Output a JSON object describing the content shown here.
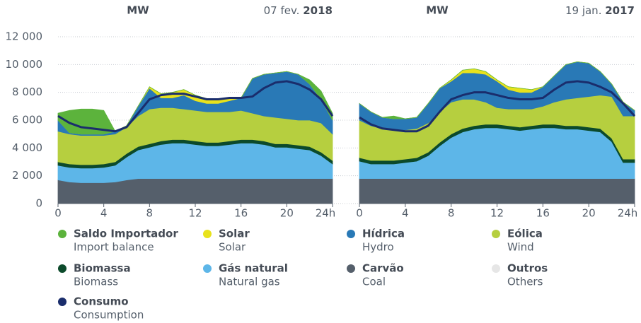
{
  "chart_data": [
    {
      "type": "stacked_area",
      "unit": "MW",
      "date": "07 fev.",
      "year": "2018",
      "x": [
        0,
        1,
        2,
        3,
        4,
        5,
        6,
        7,
        8,
        9,
        10,
        11,
        12,
        13,
        14,
        15,
        16,
        17,
        18,
        19,
        20,
        21,
        22,
        23,
        24
      ],
      "xlim": [
        0,
        24
      ],
      "xticks": [
        0,
        4,
        8,
        12,
        16,
        20,
        {
          "value": 24,
          "label": "24h"
        }
      ],
      "ylim": [
        0,
        12000
      ],
      "yticks": [
        0,
        {
          "value": 2000,
          "label": "2 000"
        },
        {
          "value": 4000,
          "label": "4 000"
        },
        {
          "value": 6000,
          "label": "6 000"
        },
        {
          "value": 8000,
          "label": "8 000"
        },
        {
          "value": 10000,
          "label": "10 000"
        },
        {
          "value": 12000,
          "label": "12 000"
        }
      ],
      "grid": true,
      "series": [
        {
          "name": "Saldo Importador",
          "name_en": "Import balance",
          "color": "#5cb33c",
          "values": [
            500,
            1600,
            1800,
            1800,
            1700,
            0,
            0,
            0,
            0,
            0,
            0,
            0,
            0,
            0,
            0,
            0,
            0,
            0,
            0,
            0,
            0,
            0,
            300,
            600,
            500
          ]
        },
        {
          "name": "Solar",
          "name_en": "Solar",
          "color": "#e8e21c",
          "values": [
            0,
            0,
            0,
            0,
            0,
            0,
            0,
            0,
            100,
            300,
            400,
            400,
            400,
            350,
            300,
            200,
            0,
            0,
            0,
            0,
            0,
            0,
            0,
            0,
            0
          ]
        },
        {
          "name": "Hídrica",
          "name_en": "Hydro",
          "color": "#2979b6",
          "values": [
            800,
            100,
            100,
            100,
            100,
            200,
            100,
            700,
            1500,
            700,
            700,
            1000,
            700,
            600,
            600,
            800,
            900,
            2500,
            3000,
            3200,
            3400,
            3300,
            2600,
            1700,
            1000
          ]
        },
        {
          "name": "Eólica",
          "name_en": "Wind",
          "color": "#b6cf3f",
          "values": [
            2200,
            2150,
            2100,
            2100,
            2050,
            2000,
            1900,
            2200,
            2500,
            2400,
            2300,
            2200,
            2200,
            2200,
            2200,
            2100,
            2100,
            1900,
            1800,
            1900,
            1800,
            1800,
            1900,
            2100,
            1900
          ]
        },
        {
          "name": "Biomassa",
          "name_en": "Biomass",
          "color": "#0c4a2b",
          "values": [
            250,
            250,
            250,
            250,
            250,
            250,
            250,
            250,
            250,
            250,
            250,
            250,
            250,
            250,
            250,
            250,
            250,
            250,
            250,
            250,
            250,
            250,
            250,
            250,
            250
          ]
        },
        {
          "name": "Gás natural",
          "name_en": "Natural gas",
          "color": "#5db6e8",
          "values": [
            1050,
            1050,
            1050,
            1050,
            1100,
            1200,
            1650,
            2050,
            2250,
            2450,
            2550,
            2550,
            2450,
            2350,
            2350,
            2450,
            2550,
            2550,
            2450,
            2250,
            2250,
            2150,
            2050,
            1650,
            1050
          ]
        },
        {
          "name": "Carvão",
          "name_en": "Coal",
          "color": "#555f6b",
          "values": [
            1700,
            1550,
            1500,
            1500,
            1500,
            1550,
            1700,
            1800,
            1800,
            1800,
            1800,
            1800,
            1800,
            1800,
            1800,
            1800,
            1800,
            1800,
            1800,
            1800,
            1800,
            1800,
            1800,
            1800,
            1800
          ]
        },
        {
          "name": "Outros",
          "name_en": "Others",
          "color": "#e6e6e6",
          "values": [
            0,
            0,
            0,
            0,
            0,
            0,
            0,
            0,
            0,
            0,
            0,
            0,
            0,
            0,
            0,
            0,
            0,
            0,
            0,
            0,
            0,
            0,
            0,
            0,
            0
          ]
        }
      ],
      "line": {
        "name": "Consumo",
        "name_en": "Consumption",
        "color": "#1a2d6c",
        "values": [
          6300,
          5800,
          5500,
          5400,
          5300,
          5200,
          5500,
          6500,
          7500,
          7800,
          7900,
          7900,
          7700,
          7500,
          7500,
          7600,
          7600,
          7700,
          8300,
          8700,
          8800,
          8600,
          8200,
          7500,
          6300
        ]
      }
    },
    {
      "type": "stacked_area",
      "unit": "MW",
      "date": "19 jan.",
      "year": "2017",
      "x": [
        0,
        1,
        2,
        3,
        4,
        5,
        6,
        7,
        8,
        9,
        10,
        11,
        12,
        13,
        14,
        15,
        16,
        17,
        18,
        19,
        20,
        21,
        22,
        23,
        24
      ],
      "xlim": [
        0,
        24
      ],
      "xticks": [
        0,
        4,
        8,
        12,
        16,
        20,
        {
          "value": 24,
          "label": "24h"
        }
      ],
      "ylim": [
        0,
        12000
      ],
      "series": [
        {
          "name": "Saldo Importador",
          "color": "#5cb33c",
          "values": [
            0,
            0,
            0,
            200,
            0,
            0,
            0,
            0,
            0,
            0,
            0,
            0,
            0,
            0,
            0,
            0,
            0,
            0,
            0,
            0,
            0,
            0,
            0,
            0,
            0
          ]
        },
        {
          "name": "Solar",
          "color": "#e8e21c",
          "values": [
            0,
            0,
            0,
            0,
            0,
            0,
            0,
            0,
            100,
            200,
            300,
            200,
            100,
            200,
            300,
            200,
            0,
            0,
            0,
            0,
            0,
            0,
            0,
            0,
            0
          ]
        },
        {
          "name": "Hídrica",
          "color": "#2979b6",
          "values": [
            1200,
            1000,
            800,
            800,
            800,
            800,
            1400,
            1700,
            1500,
            1900,
            1900,
            2000,
            1900,
            1400,
            1200,
            1200,
            1400,
            1900,
            2500,
            2600,
            2400,
            1700,
            900,
            1000,
            400
          ]
        },
        {
          "name": "Eólica",
          "color": "#b6cf3f",
          "values": [
            2700,
            2500,
            2300,
            2200,
            2100,
            2100,
            2100,
            2200,
            2300,
            2100,
            1900,
            1600,
            1200,
            1200,
            1300,
            1200,
            1300,
            1600,
            1900,
            2000,
            2200,
            2400,
            3000,
            3100,
            3100
          ]
        },
        {
          "name": "Biomassa",
          "color": "#0c4a2b",
          "values": [
            250,
            250,
            250,
            250,
            250,
            250,
            250,
            250,
            250,
            250,
            250,
            250,
            250,
            250,
            250,
            250,
            250,
            250,
            250,
            250,
            250,
            250,
            250,
            250,
            250
          ]
        },
        {
          "name": "Gás natural",
          "color": "#5db6e8",
          "values": [
            1250,
            1050,
            1050,
            1050,
            1150,
            1250,
            1650,
            2350,
            2950,
            3350,
            3550,
            3650,
            3650,
            3550,
            3450,
            3550,
            3650,
            3650,
            3550,
            3550,
            3450,
            3350,
            2650,
            1150,
            1150
          ]
        },
        {
          "name": "Carvão",
          "color": "#555f6b",
          "values": [
            1800,
            1800,
            1800,
            1800,
            1800,
            1800,
            1800,
            1800,
            1800,
            1800,
            1800,
            1800,
            1800,
            1800,
            1800,
            1800,
            1800,
            1800,
            1800,
            1800,
            1800,
            1800,
            1800,
            1800,
            1800
          ]
        },
        {
          "name": "Outros",
          "color": "#e6e6e6",
          "values": [
            0,
            0,
            0,
            0,
            0,
            0,
            0,
            0,
            0,
            0,
            0,
            0,
            0,
            0,
            0,
            0,
            0,
            0,
            0,
            0,
            0,
            0,
            0,
            0,
            0
          ]
        }
      ],
      "line": {
        "name": "Consumo",
        "color": "#1a2d6c",
        "values": [
          6200,
          5700,
          5400,
          5300,
          5200,
          5200,
          5600,
          6600,
          7500,
          7800,
          8000,
          8000,
          7800,
          7600,
          7500,
          7500,
          7600,
          8200,
          8700,
          8800,
          8700,
          8400,
          8000,
          7200,
          6300
        ]
      }
    }
  ]
}
